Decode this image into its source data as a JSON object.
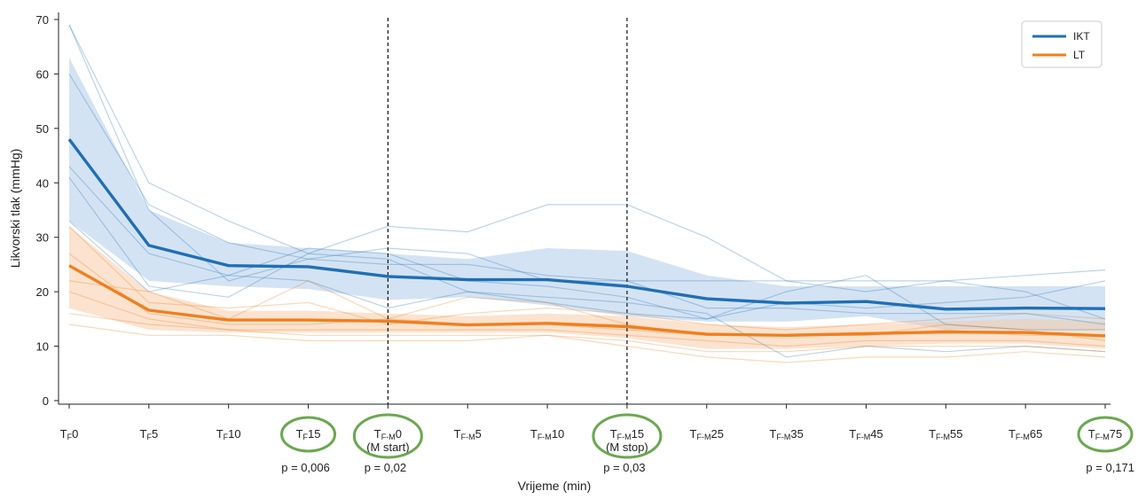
{
  "chart_data": {
    "type": "line",
    "xlabel": "Vrijeme (min)",
    "ylabel": "Likvorski tlak (mmHg)",
    "ylim": [
      0,
      70
    ],
    "yticks": [
      0,
      10,
      20,
      30,
      40,
      50,
      60,
      70
    ],
    "categories": [
      {
        "main": "T",
        "sub": "F",
        "num": "0",
        "note": "",
        "highlight": false
      },
      {
        "main": "T",
        "sub": "F",
        "num": "5",
        "note": "",
        "highlight": false
      },
      {
        "main": "T",
        "sub": "F",
        "num": "10",
        "note": "",
        "highlight": false
      },
      {
        "main": "T",
        "sub": "F",
        "num": "15",
        "note": "",
        "highlight": true
      },
      {
        "main": "T",
        "sub": "F-M",
        "num": "0",
        "note": "(M start)",
        "highlight": true
      },
      {
        "main": "T",
        "sub": "F-M",
        "num": "5",
        "note": "",
        "highlight": false
      },
      {
        "main": "T",
        "sub": "F-M",
        "num": "10",
        "note": "",
        "highlight": false
      },
      {
        "main": "T",
        "sub": "F-M",
        "num": "15",
        "note": "(M stop)",
        "highlight": true
      },
      {
        "main": "T",
        "sub": "F-M",
        "num": "25",
        "note": "",
        "highlight": false
      },
      {
        "main": "T",
        "sub": "F-M",
        "num": "35",
        "note": "",
        "highlight": false
      },
      {
        "main": "T",
        "sub": "F-M",
        "num": "45",
        "note": "",
        "highlight": false
      },
      {
        "main": "T",
        "sub": "F-M",
        "num": "55",
        "note": "",
        "highlight": false
      },
      {
        "main": "T",
        "sub": "F-M",
        "num": "65",
        "note": "",
        "highlight": false
      },
      {
        "main": "T",
        "sub": "F-M",
        "num": "75",
        "note": "",
        "highlight": true
      }
    ],
    "vlines_at_index": [
      4,
      7
    ],
    "pvalues": [
      {
        "index": 3,
        "text": "p = 0,006"
      },
      {
        "index": 4,
        "text": "p = 0,02"
      },
      {
        "index": 7,
        "text": "p = 0,03"
      },
      {
        "index": 13,
        "text": "p = 0,171"
      }
    ],
    "series": [
      {
        "name": "IKT",
        "color": "#1f6fb5",
        "band_color": "#a9c8e8",
        "mean": [
          48,
          28.5,
          24.8,
          24.6,
          22.8,
          22.2,
          22.2,
          21.0,
          18.7,
          17.9,
          18.2,
          16.8,
          17.0,
          16.9
        ],
        "upper": [
          63,
          35,
          29,
          28,
          27,
          26,
          28,
          27.5,
          23,
          21,
          21,
          21,
          21,
          21
        ],
        "lower": [
          33,
          22,
          21,
          20.5,
          18.5,
          19,
          17.5,
          15.5,
          14.5,
          14.5,
          15.5,
          13,
          13,
          13
        ],
        "individuals": [
          [
            69,
            40,
            33,
            27,
            32,
            31,
            36,
            36,
            30,
            22,
            20,
            22,
            20,
            15
          ],
          [
            60,
            36,
            29,
            26,
            25,
            25,
            23,
            22,
            17,
            17,
            16,
            16,
            16,
            14
          ],
          [
            43,
            27,
            23,
            28,
            27,
            22,
            21,
            19,
            15,
            20,
            23,
            14,
            13,
            13
          ],
          [
            41,
            21,
            19,
            27,
            26,
            20,
            19,
            18,
            16,
            8,
            10,
            9,
            10,
            9
          ],
          [
            69,
            35,
            22,
            26,
            28,
            27,
            22,
            22,
            22,
            22,
            22,
            22,
            23,
            24
          ],
          [
            33,
            20,
            23,
            22,
            17,
            20,
            18,
            16,
            15,
            18,
            17,
            18,
            19,
            22
          ]
        ]
      },
      {
        "name": "LT",
        "color": "#f07f1e",
        "band_color": "#f7c8a0",
        "mean": [
          24.8,
          16.6,
          14.8,
          14.8,
          14.6,
          13.9,
          14.2,
          13.6,
          12.2,
          12.0,
          12.3,
          12.6,
          12.5,
          11.9
        ],
        "upper": [
          32,
          20,
          16.5,
          16.5,
          16,
          15.5,
          16,
          15.5,
          14,
          13.5,
          14,
          14.5,
          15,
          14.5
        ],
        "lower": [
          17,
          13,
          12.5,
          12.5,
          12.5,
          12.5,
          12.5,
          11.5,
          9.5,
          9.5,
          10,
          10.5,
          10.5,
          9.5
        ],
        "individuals": [
          [
            32,
            18,
            17,
            18,
            14,
            16,
            17,
            16,
            14,
            13,
            14,
            15,
            16,
            15
          ],
          [
            27,
            16,
            14,
            14,
            15,
            14,
            14,
            13,
            12,
            12,
            12,
            13,
            12,
            12
          ],
          [
            20,
            15,
            13,
            13,
            13,
            13,
            13,
            12,
            11,
            10,
            11,
            11,
            11,
            10
          ],
          [
            16,
            14,
            13,
            12,
            12,
            12,
            12,
            11,
            9,
            9,
            10,
            10,
            10,
            9
          ],
          [
            14,
            12,
            12,
            11,
            11,
            11,
            12,
            10,
            8,
            7,
            8,
            8,
            9,
            8
          ],
          [
            22,
            20,
            15,
            22,
            15,
            19,
            18,
            14,
            12,
            12,
            12,
            14,
            13,
            11
          ]
        ]
      }
    ],
    "legend": {
      "position": "top-right",
      "entries": [
        "IKT",
        "LT"
      ]
    },
    "highlight_color": "#6aa84f",
    "grid": false
  }
}
